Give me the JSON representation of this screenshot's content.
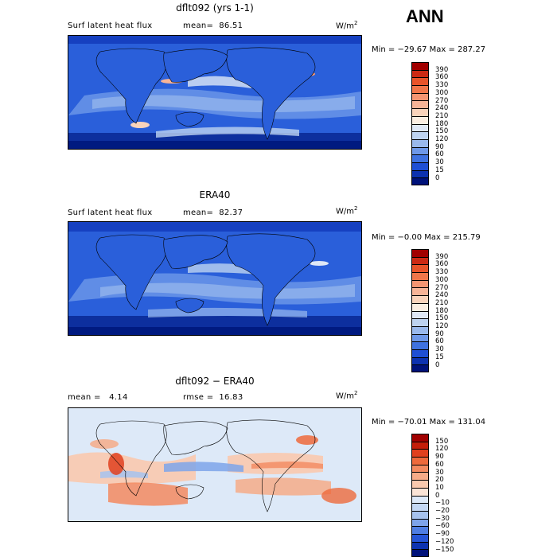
{
  "season": "ANN",
  "units_base": "W/m",
  "units_exp": "2",
  "panels": [
    {
      "title": "dflt092 (yrs 1-1)",
      "left_text": "Surf latent heat flux",
      "mid_text": "mean=  86.51",
      "minmax": "Min = −29.67 Max = 287.27",
      "colorbar_labels": [
        "390",
        "360",
        "330",
        "300",
        "270",
        "240",
        "210",
        "180",
        "150",
        "120",
        "90",
        "60",
        "30",
        "15",
        "0"
      ],
      "colorbar_colors": [
        "#a10000",
        "#cc2a14",
        "#e8542a",
        "#f0764a",
        "#f49572",
        "#f7b497",
        "#f9d3bb",
        "#fbeee2",
        "#dfe8f6",
        "#bed3f0",
        "#9ab9ec",
        "#6e98e8",
        "#3f72e0",
        "#1f4fd4",
        "#0d32b0",
        "#00127a"
      ]
    },
    {
      "title": "ERA40",
      "left_text": "Surf latent heat flux",
      "mid_text": "mean=  82.37",
      "minmax": "Min = −0.00 Max = 215.79",
      "colorbar_labels": [
        "390",
        "360",
        "330",
        "300",
        "270",
        "240",
        "210",
        "180",
        "150",
        "120",
        "90",
        "60",
        "30",
        "15",
        "0"
      ],
      "colorbar_colors": [
        "#a10000",
        "#cc2a14",
        "#e8542a",
        "#f0764a",
        "#f49572",
        "#f7b497",
        "#f9d3bb",
        "#fbeee2",
        "#dfe8f6",
        "#bed3f0",
        "#9ab9ec",
        "#6e98e8",
        "#3f72e0",
        "#1f4fd4",
        "#0d32b0",
        "#00127a"
      ]
    },
    {
      "title": "dflt092 − ERA40",
      "left_text": "mean =   4.14",
      "mid_text": "rmse =  16.83",
      "minmax": "Min = −70.01 Max = 131.04",
      "colorbar_labels": [
        "150",
        "120",
        "90",
        "60",
        "30",
        "20",
        "10",
        "0",
        "−10",
        "−20",
        "−30",
        "−60",
        "−90",
        "−120",
        "−150"
      ],
      "colorbar_colors": [
        "#a10000",
        "#c41e0a",
        "#e0401e",
        "#ee6a3c",
        "#f38a60",
        "#f6ab88",
        "#f9c9ae",
        "#fbe4d6",
        "#dde9f8",
        "#c4d8f4",
        "#a6c2ee",
        "#7ea4ea",
        "#4f7ee2",
        "#2655d6",
        "#0d33b0",
        "#00127a"
      ]
    }
  ]
}
